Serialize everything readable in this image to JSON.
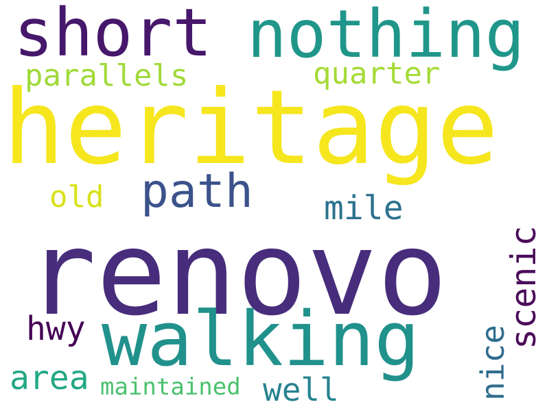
{
  "words": {
    "renovo": {
      "text": "renovo",
      "color": "#472d7b"
    },
    "heritage": {
      "text": "heritage",
      "color": "#f5e61e"
    },
    "walking": {
      "text": "walking",
      "color": "#21918c"
    },
    "nothing": {
      "text": "nothing",
      "color": "#20968a"
    },
    "short": {
      "text": "short",
      "color": "#46176b"
    },
    "path": {
      "text": "path",
      "color": "#3b528b"
    },
    "parallels": {
      "text": "parallels",
      "color": "#a0da39"
    },
    "quarter": {
      "text": "quarter",
      "color": "#a5db36"
    },
    "old": {
      "text": "old",
      "color": "#d8e219"
    },
    "mile": {
      "text": "mile",
      "color": "#2c728e"
    },
    "hwy": {
      "text": "hwy",
      "color": "#440154"
    },
    "area": {
      "text": "area",
      "color": "#22a884"
    },
    "maintained": {
      "text": "maintained",
      "color": "#4ac16d"
    },
    "well": {
      "text": "well",
      "color": "#26828e"
    },
    "scenic": {
      "text": "scenic",
      "color": "#4b0c5a"
    },
    "nice": {
      "text": "nice",
      "color": "#2f6c8e"
    }
  }
}
